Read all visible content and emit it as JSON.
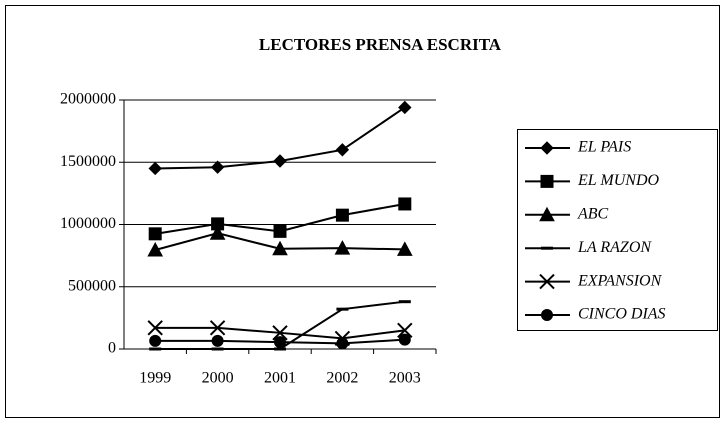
{
  "chart_data": {
    "type": "line",
    "title": "LECTORES PRENSA ESCRITA",
    "categories": [
      "1999",
      "2000",
      "2001",
      "2002",
      "2003"
    ],
    "ylim": [
      0,
      2000000
    ],
    "yticks": [
      0,
      500000,
      1000000,
      1500000,
      2000000
    ],
    "grid": true,
    "legend": "right",
    "series": [
      {
        "name": "EL PAIS",
        "color": "#000000",
        "marker": "diamond",
        "values": [
          1450000,
          1460000,
          1510000,
          1600000,
          1940000
        ]
      },
      {
        "name": "EL MUNDO",
        "color": "#000000",
        "marker": "square",
        "values": [
          925000,
          1005000,
          945000,
          1075000,
          1165000
        ]
      },
      {
        "name": "ABC",
        "color": "#000000",
        "marker": "triangle",
        "values": [
          795000,
          930000,
          805000,
          810000,
          800000
        ]
      },
      {
        "name": "LA RAZON",
        "color": "#000000",
        "marker": "dash",
        "values": [
          0,
          0,
          0,
          320000,
          380000
        ]
      },
      {
        "name": "EXPANSION",
        "color": "#000000",
        "marker": "x",
        "values": [
          170000,
          170000,
          130000,
          85000,
          150000
        ]
      },
      {
        "name": "CINCO DIAS",
        "color": "#000000",
        "marker": "circle",
        "values": [
          65000,
          65000,
          55000,
          45000,
          75000
        ]
      }
    ]
  }
}
